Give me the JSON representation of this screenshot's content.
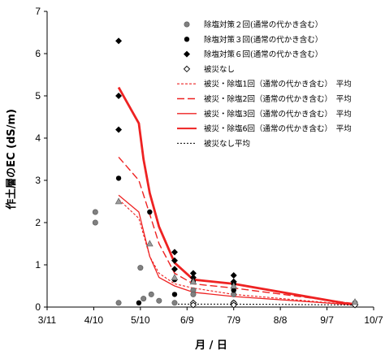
{
  "chart_data": {
    "type": "scatter",
    "xlabel": "月 / 日",
    "ylabel": "作土層のEC (dS/m)",
    "xlim": [
      "2013-03-11",
      "2013-10-07"
    ],
    "ylim": [
      0,
      7
    ],
    "x_ticks": [
      {
        "date": "2013-03-11",
        "label": "3/11"
      },
      {
        "date": "2013-04-10",
        "label": "4/10"
      },
      {
        "date": "2013-05-10",
        "label": "5/10"
      },
      {
        "date": "2013-06-09",
        "label": "6/9"
      },
      {
        "date": "2013-07-09",
        "label": "7/9"
      },
      {
        "date": "2013-08-08",
        "label": "8/8"
      },
      {
        "date": "2013-09-07",
        "label": "9/7"
      },
      {
        "date": "2013-10-07",
        "label": "10/7"
      }
    ],
    "y_ticks": [
      0,
      1,
      2,
      3,
      4,
      5,
      6,
      7
    ],
    "grid": false,
    "legend_position": "top-right",
    "series": [
      {
        "name": "除塩対策２回(通常の代かき含む）",
        "kind": "scatter",
        "marker": "circle-gray",
        "points": [
          [
            "2013-04-11",
            2.25
          ],
          [
            "2013-04-11",
            2.0
          ],
          [
            "2013-04-26",
            0.1
          ],
          [
            "2013-05-10",
            0.93
          ],
          [
            "2013-05-12",
            0.2
          ],
          [
            "2013-05-17",
            0.3
          ],
          [
            "2013-05-22",
            0.15
          ],
          [
            "2013-06-01",
            0.1
          ],
          [
            "2013-06-13",
            0.4
          ],
          [
            "2013-06-13",
            0.3
          ],
          [
            "2013-07-09",
            0.3
          ],
          [
            "2013-07-09",
            0.1
          ],
          [
            "2013-09-25",
            0.1
          ]
        ]
      },
      {
        "name": "除塩対策３回(通常の代かき含む）",
        "kind": "scatter",
        "marker": "circle-black",
        "points": [
          [
            "2013-04-26",
            3.05
          ],
          [
            "2013-05-16",
            2.25
          ],
          [
            "2013-05-09",
            0.1
          ],
          [
            "2013-06-01",
            0.65
          ],
          [
            "2013-06-01",
            0.3
          ],
          [
            "2013-06-13",
            0.6
          ],
          [
            "2013-07-09",
            0.55
          ],
          [
            "2013-07-09",
            0.4
          ]
        ]
      },
      {
        "name": "除塩対策６回(通常の代かき含む）",
        "kind": "scatter",
        "marker": "diamond-black",
        "points": [
          [
            "2013-04-26",
            6.3
          ],
          [
            "2013-04-26",
            5.0
          ],
          [
            "2013-04-26",
            4.2
          ],
          [
            "2013-06-01",
            1.3
          ],
          [
            "2013-06-01",
            1.1
          ],
          [
            "2013-06-01",
            0.9
          ],
          [
            "2013-06-13",
            0.8
          ],
          [
            "2013-06-13",
            0.7
          ],
          [
            "2013-07-09",
            0.75
          ],
          [
            "2013-07-09",
            0.6
          ]
        ]
      },
      {
        "name": "被災なし",
        "kind": "scatter",
        "marker": "diamond-open",
        "points": [
          [
            "2013-06-13",
            0.1
          ],
          [
            "2013-06-13",
            0.05
          ],
          [
            "2013-07-09",
            0.1
          ],
          [
            "2013-07-09",
            0.05
          ],
          [
            "2013-09-25",
            0.05
          ]
        ]
      },
      {
        "name": "",
        "kind": "scatter",
        "marker": "triangle-gray",
        "points": [
          [
            "2013-04-26",
            2.5
          ],
          [
            "2013-05-16",
            1.5
          ],
          [
            "2013-06-01",
            0.7
          ],
          [
            "2013-06-13",
            0.6
          ],
          [
            "2013-07-09",
            0.5
          ],
          [
            "2013-09-25",
            0.12
          ]
        ]
      },
      {
        "name": "被災・除塩1回（通常の代かき含む）　平均",
        "kind": "line",
        "style": "red-dotted",
        "points": [
          [
            "2013-04-26",
            2.55
          ],
          [
            "2013-05-09",
            2.1
          ],
          [
            "2013-05-16",
            1.2
          ],
          [
            "2013-05-22",
            0.8
          ],
          [
            "2013-06-01",
            0.55
          ],
          [
            "2013-06-13",
            0.45
          ],
          [
            "2013-07-09",
            0.3
          ],
          [
            "2013-09-25",
            0.05
          ]
        ]
      },
      {
        "name": "被災・除塩2回（通常の代かき含む）　平均",
        "kind": "line",
        "style": "red-dashed",
        "points": [
          [
            "2013-04-26",
            3.55
          ],
          [
            "2013-05-09",
            3.0
          ],
          [
            "2013-05-16",
            2.2
          ],
          [
            "2013-05-22",
            1.5
          ],
          [
            "2013-06-01",
            0.8
          ],
          [
            "2013-06-13",
            0.55
          ],
          [
            "2013-07-09",
            0.45
          ],
          [
            "2013-09-25",
            0.08
          ]
        ]
      },
      {
        "name": "被災・除塩3回（通常の代かき含む）　平均",
        "kind": "line",
        "style": "red-thin",
        "points": [
          [
            "2013-04-26",
            2.65
          ],
          [
            "2013-05-09",
            2.25
          ],
          [
            "2013-05-16",
            1.2
          ],
          [
            "2013-05-22",
            0.7
          ],
          [
            "2013-06-01",
            0.5
          ],
          [
            "2013-06-13",
            0.35
          ],
          [
            "2013-07-09",
            0.25
          ],
          [
            "2013-09-25",
            0.05
          ]
        ]
      },
      {
        "name": "被災・除塩6回（通常の代かき含む）　平均",
        "kind": "line",
        "style": "red-thick",
        "points": [
          [
            "2013-04-26",
            5.2
          ],
          [
            "2013-05-09",
            4.35
          ],
          [
            "2013-05-12",
            3.5
          ],
          [
            "2013-05-16",
            2.7
          ],
          [
            "2013-05-22",
            1.9
          ],
          [
            "2013-06-01",
            1.05
          ],
          [
            "2013-06-13",
            0.65
          ],
          [
            "2013-07-09",
            0.55
          ],
          [
            "2013-09-25",
            0.05
          ]
        ]
      },
      {
        "name": "被災なし平均",
        "kind": "line",
        "style": "black-dotted",
        "points": [
          [
            "2013-06-01",
            0.07
          ],
          [
            "2013-06-13",
            0.07
          ],
          [
            "2013-07-09",
            0.07
          ],
          [
            "2013-09-25",
            0.05
          ]
        ]
      }
    ]
  }
}
